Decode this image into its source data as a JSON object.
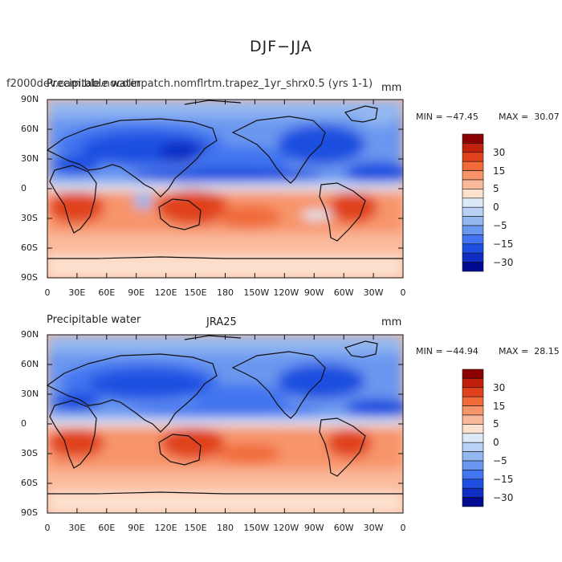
{
  "figure": {
    "title": "DJF−JJA"
  },
  "panels": [
    {
      "left_title": "Precipitable water",
      "center_title": "f2000dev.cam.ble.nocolinpatch.nomflrtm.trapez_1yr_shrx0.5 (yrs 1-1)",
      "units": "mm",
      "min_label": "MIN = −47.45",
      "max_label": "MAX =  30.07"
    },
    {
      "left_title": "Precipitable water",
      "center_title": "JRA25",
      "units": "mm",
      "min_label": "MIN = −44.94",
      "max_label": "MAX =  28.15"
    }
  ],
  "axes": {
    "lat_labels": [
      "90N",
      "60N",
      "30N",
      "0",
      "30S",
      "60S",
      "90S"
    ],
    "lon_labels": [
      "0",
      "30E",
      "60E",
      "90E",
      "120E",
      "150E",
      "180",
      "150W",
      "120W",
      "90W",
      "60W",
      "30W",
      "0"
    ]
  },
  "colorbar": {
    "labels": [
      "30",
      "15",
      "5",
      "0",
      "−5",
      "−15",
      "−30"
    ],
    "colors": [
      "#8b0000",
      "#c1200c",
      "#e0431c",
      "#f06a3a",
      "#f7946a",
      "#fab99b",
      "#fde1cf",
      "#dceaf8",
      "#b9d1f4",
      "#93b7f1",
      "#6a97ef",
      "#4275ef",
      "#1f4fe0",
      "#0f2ec4",
      "#000a90"
    ]
  },
  "chart_data": {
    "type": "heatmap",
    "variable": "Precipitable water",
    "units": "mm",
    "season_difference": "DJF−JJA",
    "contour_levels": [
      -35,
      -30,
      -25,
      -20,
      -15,
      -10,
      -5,
      0,
      5,
      10,
      15,
      20,
      25,
      30,
      35
    ],
    "x_axis": {
      "range": [
        0,
        360
      ],
      "ticks": [
        0,
        30,
        60,
        90,
        120,
        150,
        180,
        210,
        240,
        270,
        300,
        330,
        360
      ]
    },
    "y_axis": {
      "range": [
        -90,
        90
      ],
      "ticks": [
        90,
        60,
        30,
        0,
        -30,
        -60,
        -90
      ]
    },
    "panels": [
      {
        "name": "f2000dev.cam.ble.nocolinpatch.nomflrtm.trapez_1yr_shrx0.5 (yrs 1-1)",
        "min": -47.45,
        "max": 30.07
      },
      {
        "name": "JRA25",
        "min": -44.94,
        "max": 28.15
      }
    ]
  }
}
